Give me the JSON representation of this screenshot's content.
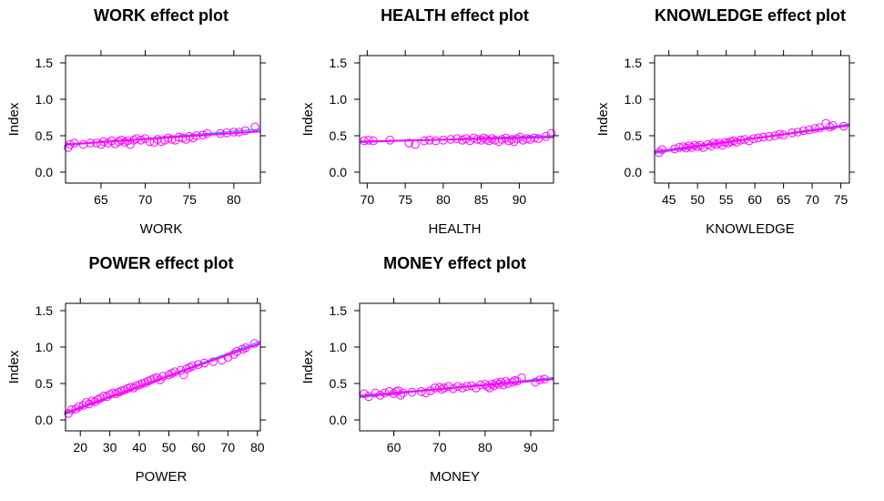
{
  "colors": {
    "points": "#ff00ff",
    "fit": "#ff00ff",
    "band": "#2aa8ff",
    "axis": "#000000"
  },
  "chart_data": [
    {
      "type": "scatter",
      "title": "WORK effect plot",
      "xlabel": "WORK",
      "ylabel": "Index",
      "xlim": [
        61,
        83
      ],
      "ylim": [
        -0.15,
        1.6
      ],
      "xticks": [
        65,
        70,
        75,
        80
      ],
      "yticks": [
        0.0,
        0.5,
        1.0,
        1.5
      ],
      "fit": [
        [
          61,
          0.38
        ],
        [
          83,
          0.56
        ]
      ],
      "band": [
        [
          61,
          0.37
        ],
        [
          83,
          0.59
        ]
      ],
      "points": [
        [
          61.3,
          0.34
        ],
        [
          61.5,
          0.38
        ],
        [
          62,
          0.4
        ],
        [
          63,
          0.38
        ],
        [
          63.8,
          0.4
        ],
        [
          64.5,
          0.4
        ],
        [
          65,
          0.38
        ],
        [
          65.3,
          0.42
        ],
        [
          65.8,
          0.4
        ],
        [
          66.2,
          0.43
        ],
        [
          66.6,
          0.39
        ],
        [
          67,
          0.42
        ],
        [
          67.3,
          0.44
        ],
        [
          67.7,
          0.41
        ],
        [
          68,
          0.43
        ],
        [
          68.3,
          0.38
        ],
        [
          68.7,
          0.44
        ],
        [
          69,
          0.46
        ],
        [
          69.5,
          0.44
        ],
        [
          70,
          0.46
        ],
        [
          70.5,
          0.42
        ],
        [
          71,
          0.41
        ],
        [
          71.4,
          0.45
        ],
        [
          71.8,
          0.42
        ],
        [
          72.2,
          0.44
        ],
        [
          72.6,
          0.47
        ],
        [
          73,
          0.45
        ],
        [
          73.4,
          0.44
        ],
        [
          73.8,
          0.48
        ],
        [
          74.2,
          0.47
        ],
        [
          74.6,
          0.45
        ],
        [
          75,
          0.49
        ],
        [
          75.4,
          0.47
        ],
        [
          75.8,
          0.5
        ],
        [
          76.5,
          0.51
        ],
        [
          77,
          0.53
        ],
        [
          78.5,
          0.53
        ],
        [
          79.2,
          0.54
        ],
        [
          80,
          0.55
        ],
        [
          80.6,
          0.55
        ],
        [
          81.3,
          0.57
        ],
        [
          82.4,
          0.62
        ]
      ]
    },
    {
      "type": "scatter",
      "title": "HEALTH effect plot",
      "xlabel": "HEALTH",
      "ylabel": "Index",
      "xlim": [
        69,
        94.5
      ],
      "ylim": [
        -0.15,
        1.6
      ],
      "xticks": [
        70,
        75,
        80,
        85,
        90
      ],
      "yticks": [
        0.0,
        0.5,
        1.0,
        1.5
      ],
      "fit": [
        [
          69,
          0.42
        ],
        [
          94.5,
          0.48
        ]
      ],
      "band": [
        [
          69,
          0.41
        ],
        [
          94.5,
          0.5
        ]
      ],
      "points": [
        [
          69.6,
          0.43
        ],
        [
          70.2,
          0.44
        ],
        [
          70.8,
          0.43
        ],
        [
          73,
          0.44
        ],
        [
          75.5,
          0.4
        ],
        [
          76.3,
          0.38
        ],
        [
          77.5,
          0.43
        ],
        [
          78.2,
          0.44
        ],
        [
          79,
          0.43
        ],
        [
          80,
          0.44
        ],
        [
          81,
          0.45
        ],
        [
          81.8,
          0.46
        ],
        [
          82.5,
          0.44
        ],
        [
          83,
          0.46
        ],
        [
          83.5,
          0.43
        ],
        [
          84,
          0.47
        ],
        [
          84.5,
          0.45
        ],
        [
          85,
          0.44
        ],
        [
          85.3,
          0.47
        ],
        [
          85.7,
          0.45
        ],
        [
          86,
          0.43
        ],
        [
          86.4,
          0.46
        ],
        [
          86.8,
          0.44
        ],
        [
          87.3,
          0.42
        ],
        [
          87.7,
          0.45
        ],
        [
          88.2,
          0.47
        ],
        [
          88.6,
          0.43
        ],
        [
          89,
          0.45
        ],
        [
          89.3,
          0.42
        ],
        [
          89.7,
          0.46
        ],
        [
          90.1,
          0.48
        ],
        [
          90.5,
          0.44
        ],
        [
          91,
          0.46
        ],
        [
          91.4,
          0.45
        ],
        [
          92,
          0.47
        ],
        [
          92.5,
          0.46
        ],
        [
          93.5,
          0.49
        ],
        [
          94.2,
          0.53
        ]
      ]
    },
    {
      "type": "scatter",
      "title": "KNOWLEDGE effect plot",
      "xlabel": "KNOWLEDGE",
      "ylabel": "Index",
      "xlim": [
        42.5,
        76.5
      ],
      "ylim": [
        -0.15,
        1.6
      ],
      "xticks": [
        45,
        50,
        55,
        60,
        65,
        70,
        75
      ],
      "yticks": [
        0.0,
        0.5,
        1.0,
        1.5
      ],
      "fit": [
        [
          42.5,
          0.28
        ],
        [
          76.5,
          0.64
        ]
      ],
      "band": [
        [
          42.5,
          0.26
        ],
        [
          76.5,
          0.66
        ]
      ],
      "points": [
        [
          43.3,
          0.27
        ],
        [
          43.8,
          0.31
        ],
        [
          46,
          0.32
        ],
        [
          46.8,
          0.34
        ],
        [
          47.5,
          0.35
        ],
        [
          48,
          0.33
        ],
        [
          48.5,
          0.36
        ],
        [
          49,
          0.34
        ],
        [
          49.5,
          0.37
        ],
        [
          50,
          0.35
        ],
        [
          50.5,
          0.37
        ],
        [
          51,
          0.34
        ],
        [
          51.8,
          0.38
        ],
        [
          52.3,
          0.36
        ],
        [
          52.8,
          0.4
        ],
        [
          53.3,
          0.38
        ],
        [
          53.8,
          0.4
        ],
        [
          54.3,
          0.37
        ],
        [
          54.8,
          0.41
        ],
        [
          55.3,
          0.4
        ],
        [
          55.8,
          0.42
        ],
        [
          56.3,
          0.43
        ],
        [
          56.8,
          0.41
        ],
        [
          57.5,
          0.44
        ],
        [
          58.2,
          0.45
        ],
        [
          59,
          0.43
        ],
        [
          59.8,
          0.46
        ],
        [
          60.6,
          0.47
        ],
        [
          61.5,
          0.48
        ],
        [
          62.5,
          0.49
        ],
        [
          63.5,
          0.5
        ],
        [
          64.3,
          0.52
        ],
        [
          65,
          0.51
        ],
        [
          66.5,
          0.54
        ],
        [
          67.5,
          0.55
        ],
        [
          68.5,
          0.57
        ],
        [
          69.5,
          0.58
        ],
        [
          70.5,
          0.6
        ],
        [
          71.3,
          0.61
        ],
        [
          72.4,
          0.67
        ],
        [
          73.1,
          0.62
        ],
        [
          73.6,
          0.64
        ],
        [
          75.5,
          0.63
        ]
      ]
    },
    {
      "type": "scatter",
      "title": "POWER effect plot",
      "xlabel": "POWER",
      "ylabel": "Index",
      "xlim": [
        15,
        81
      ],
      "ylim": [
        -0.15,
        1.6
      ],
      "xticks": [
        20,
        30,
        40,
        50,
        60,
        70,
        80
      ],
      "yticks": [
        0.0,
        0.5,
        1.0,
        1.5
      ],
      "fit": [
        [
          15,
          0.1
        ],
        [
          81,
          1.05
        ]
      ],
      "band": [
        [
          15,
          0.08
        ],
        [
          81,
          1.08
        ]
      ],
      "points": [
        [
          16,
          0.09
        ],
        [
          17,
          0.14
        ],
        [
          18.5,
          0.15
        ],
        [
          19.5,
          0.18
        ],
        [
          21,
          0.2
        ],
        [
          22,
          0.24
        ],
        [
          23,
          0.22
        ],
        [
          24,
          0.26
        ],
        [
          25,
          0.25
        ],
        [
          26,
          0.28
        ],
        [
          27,
          0.3
        ],
        [
          28,
          0.33
        ],
        [
          29,
          0.32
        ],
        [
          30,
          0.35
        ],
        [
          31,
          0.37
        ],
        [
          32,
          0.36
        ],
        [
          33,
          0.38
        ],
        [
          34,
          0.4
        ],
        [
          35,
          0.41
        ],
        [
          36,
          0.43
        ],
        [
          37,
          0.45
        ],
        [
          38,
          0.44
        ],
        [
          39,
          0.47
        ],
        [
          40,
          0.48
        ],
        [
          41,
          0.5
        ],
        [
          42,
          0.51
        ],
        [
          43,
          0.53
        ],
        [
          44,
          0.55
        ],
        [
          45,
          0.57
        ],
        [
          46,
          0.58
        ],
        [
          47,
          0.55
        ],
        [
          48,
          0.6
        ],
        [
          50,
          0.62
        ],
        [
          51,
          0.64
        ],
        [
          52,
          0.66
        ],
        [
          54,
          0.68
        ],
        [
          55,
          0.62
        ],
        [
          56,
          0.7
        ],
        [
          57,
          0.72
        ],
        [
          58,
          0.74
        ],
        [
          60,
          0.76
        ],
        [
          62,
          0.78
        ],
        [
          65,
          0.8
        ],
        [
          68,
          0.82
        ],
        [
          70,
          0.86
        ],
        [
          72,
          0.9
        ],
        [
          73,
          0.94
        ],
        [
          75,
          0.97
        ],
        [
          76,
          0.99
        ],
        [
          79,
          1.05
        ]
      ]
    },
    {
      "type": "scatter",
      "title": "MONEY effect plot",
      "xlabel": "MONEY",
      "ylabel": "Index",
      "xlim": [
        52.5,
        95
      ],
      "ylim": [
        -0.15,
        1.6
      ],
      "xticks": [
        60,
        70,
        80,
        90
      ],
      "yticks": [
        0.0,
        0.5,
        1.0,
        1.5
      ],
      "fit": [
        [
          52.5,
          0.33
        ],
        [
          95,
          0.56
        ]
      ],
      "band": [
        [
          52.5,
          0.31
        ],
        [
          95,
          0.58
        ]
      ],
      "points": [
        [
          53.5,
          0.36
        ],
        [
          54.5,
          0.32
        ],
        [
          56,
          0.37
        ],
        [
          57,
          0.34
        ],
        [
          58,
          0.37
        ],
        [
          59,
          0.39
        ],
        [
          60,
          0.36
        ],
        [
          60.5,
          0.39
        ],
        [
          61,
          0.4
        ],
        [
          61.5,
          0.34
        ],
        [
          62,
          0.37
        ],
        [
          64,
          0.38
        ],
        [
          66,
          0.39
        ],
        [
          67,
          0.37
        ],
        [
          68,
          0.4
        ],
        [
          69,
          0.44
        ],
        [
          70,
          0.45
        ],
        [
          70.5,
          0.42
        ],
        [
          71,
          0.44
        ],
        [
          72,
          0.46
        ],
        [
          73,
          0.43
        ],
        [
          74,
          0.46
        ],
        [
          75,
          0.44
        ],
        [
          76,
          0.46
        ],
        [
          77,
          0.47
        ],
        [
          78,
          0.44
        ],
        [
          79,
          0.48
        ],
        [
          80,
          0.49
        ],
        [
          80.5,
          0.46
        ],
        [
          81,
          0.44
        ],
        [
          81.5,
          0.49
        ],
        [
          82,
          0.47
        ],
        [
          82.5,
          0.51
        ],
        [
          83,
          0.49
        ],
        [
          83.5,
          0.52
        ],
        [
          84,
          0.48
        ],
        [
          84.5,
          0.53
        ],
        [
          85,
          0.5
        ],
        [
          86,
          0.52
        ],
        [
          86.5,
          0.54
        ],
        [
          87,
          0.53
        ],
        [
          88,
          0.58
        ],
        [
          91,
          0.52
        ],
        [
          92,
          0.55
        ],
        [
          93,
          0.56
        ]
      ]
    }
  ]
}
